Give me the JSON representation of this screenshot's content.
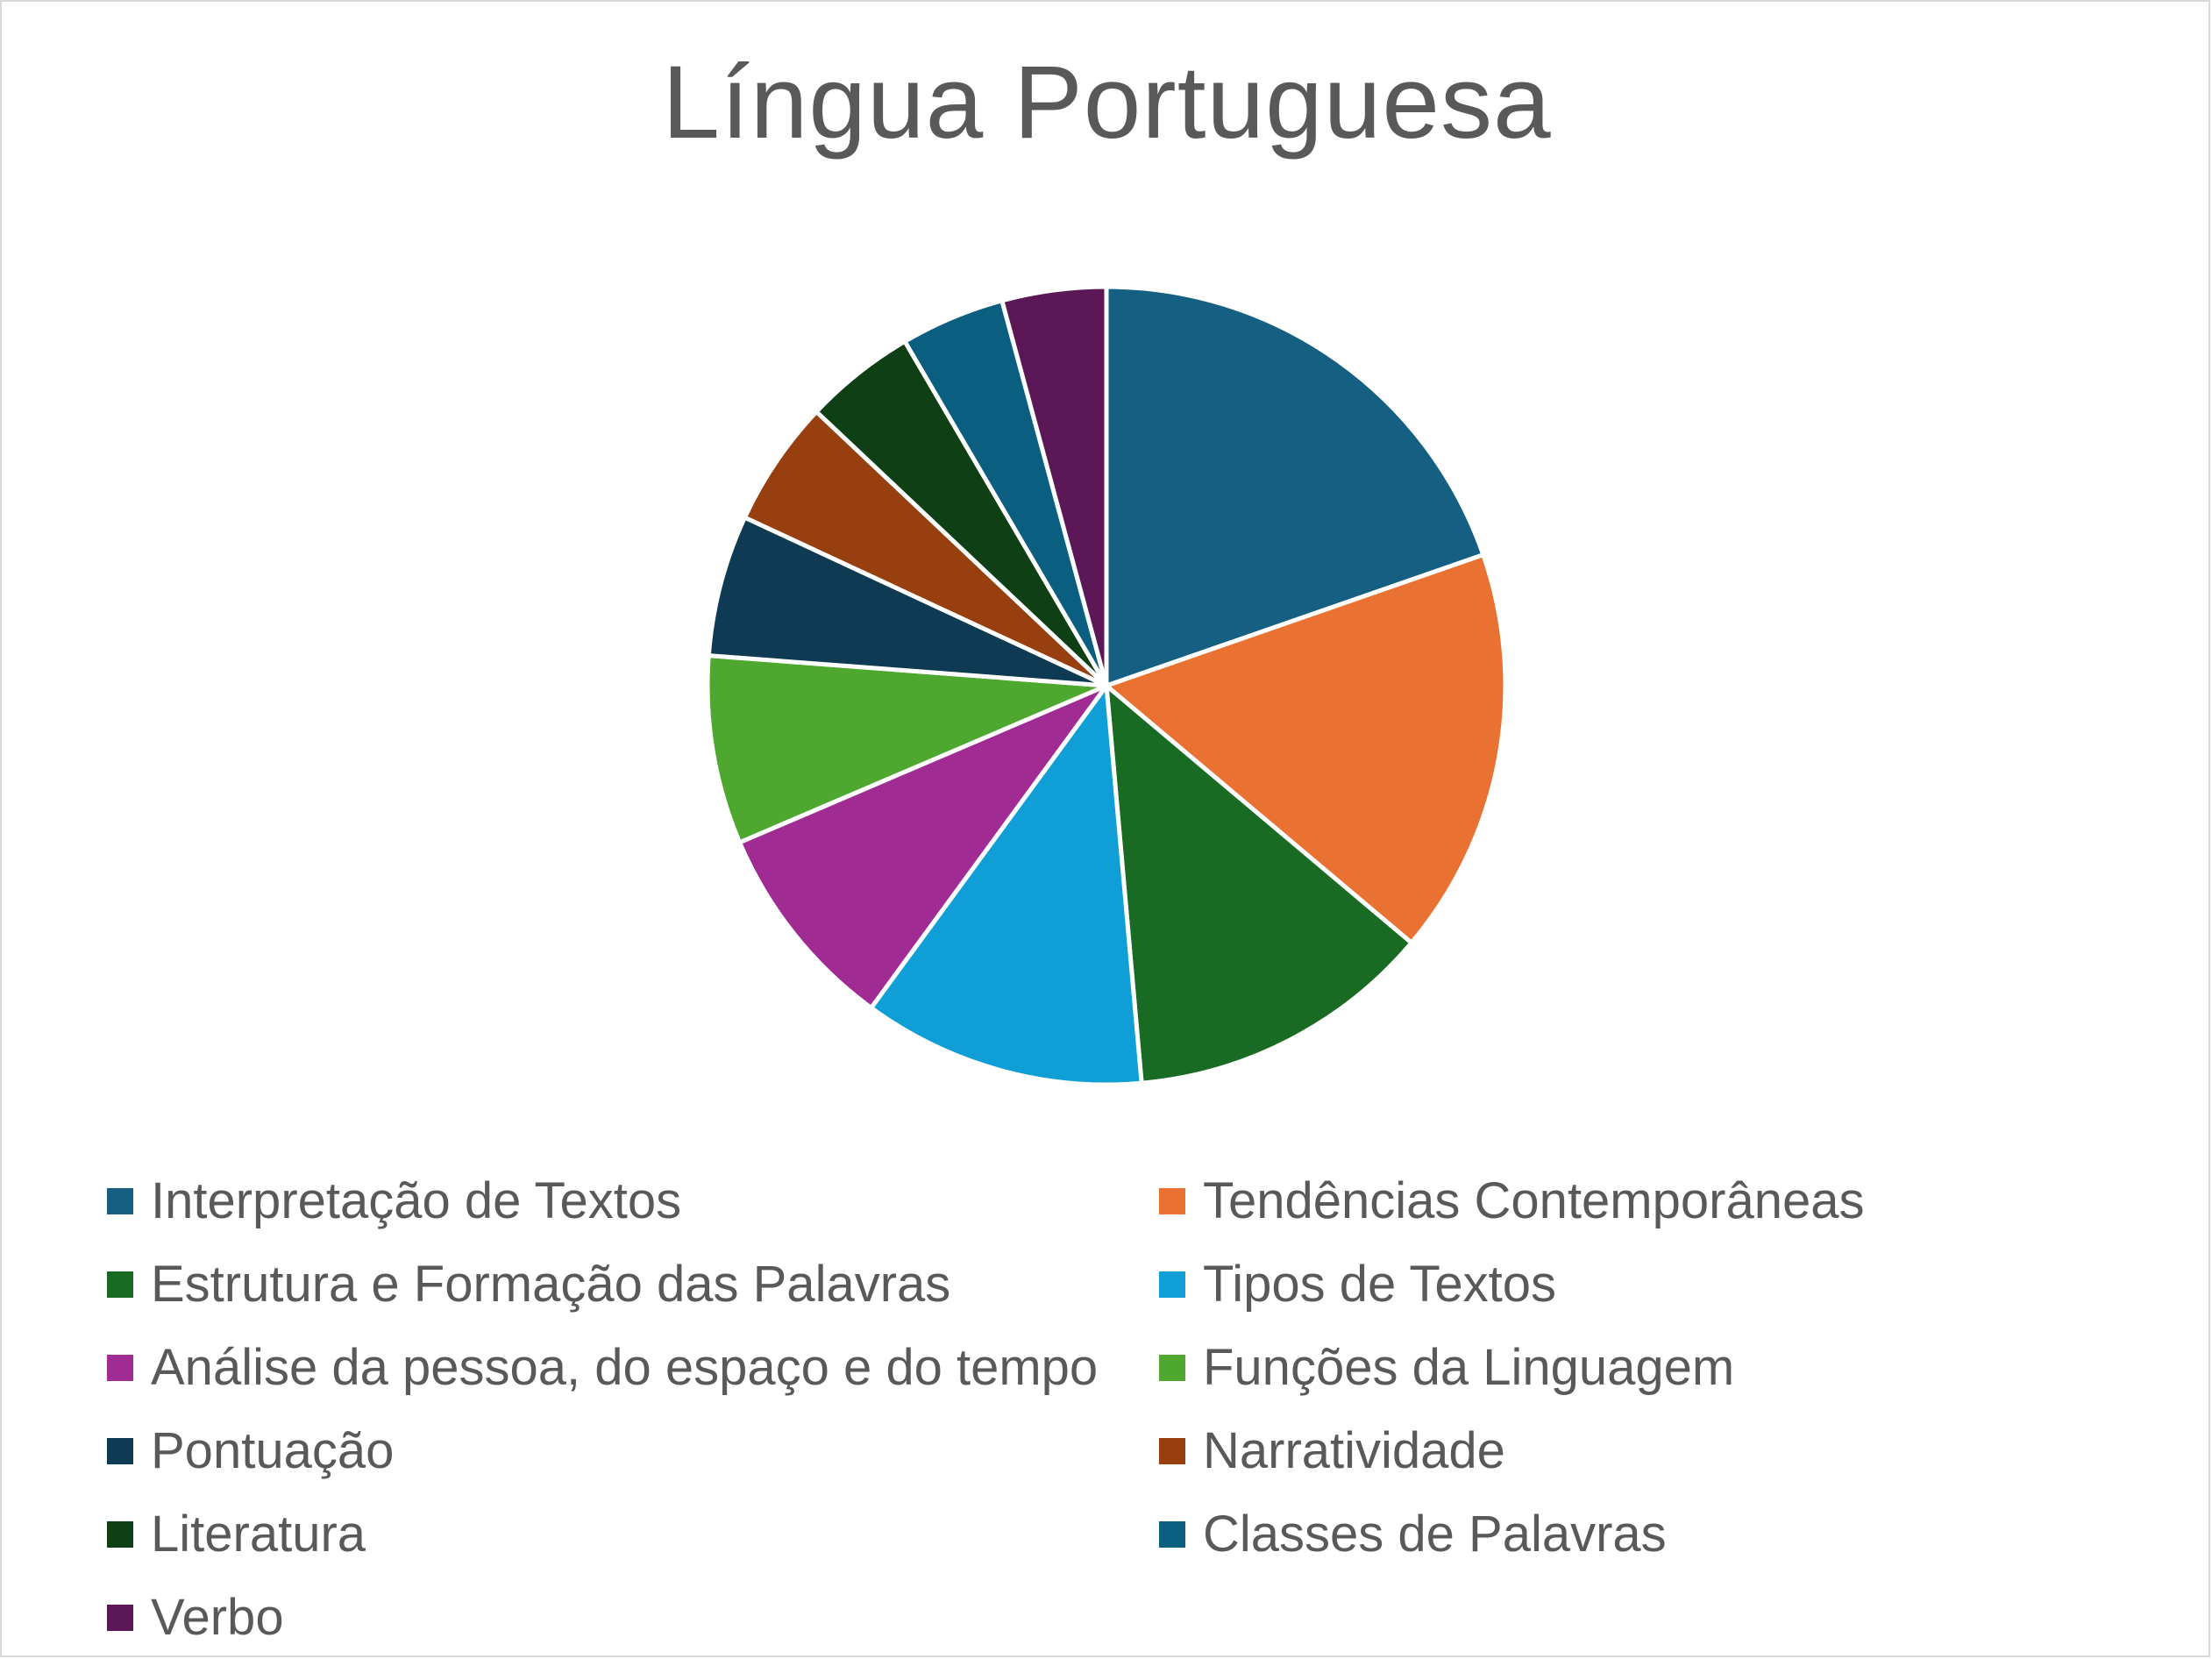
{
  "chart_data": {
    "type": "pie",
    "title": "Língua Portuguesa",
    "legend_position": "bottom",
    "categories": [
      "Interpretação de Textos",
      "Tendências Contemporâneas",
      "Estrutura e Formação das Palavras",
      "Tipos de Textos",
      "Análise da pessoa, do espaço e do tempo",
      "Funções da Linguagem",
      "Pontuação",
      "Narratividade",
      "Literatura",
      "Classes de Palavras",
      "Verbo"
    ],
    "values": [
      19.6,
      16.4,
      12.4,
      11.4,
      8.5,
      7.6,
      5.7,
      5.1,
      4.5,
      4.2,
      4.2
    ],
    "colors": [
      "#156082",
      "#E97132",
      "#196B24",
      "#0F9ED5",
      "#A02B93",
      "#4EA72E",
      "#0E3A53",
      "#983F10",
      "#0F3F15",
      "#0A5F80",
      "#5C1856"
    ]
  }
}
